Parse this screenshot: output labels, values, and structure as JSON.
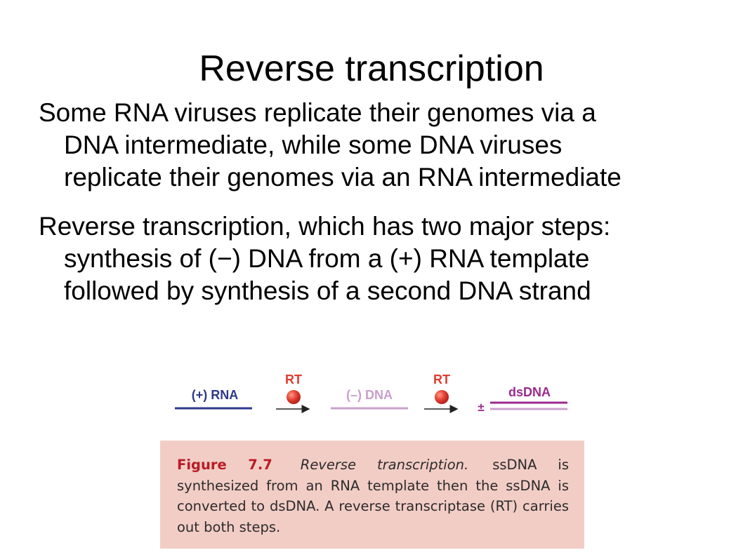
{
  "slide": {
    "title": "Reverse transcription",
    "bullets": [
      {
        "lines": [
          "Some RNA viruses replicate their genomes via a",
          "DNA intermediate, while some DNA viruses",
          "replicate their genomes via an RNA intermediate"
        ]
      },
      {
        "lines": [
          "Reverse transcription, which has two major steps:",
          "synthesis of (−) DNA from a (+) RNA template",
          "followed by synthesis of a second DNA strand"
        ]
      }
    ]
  },
  "figure": {
    "diagram": {
      "rna_label": "(+) RNA",
      "rt_label_1": "RT",
      "dna_label": "(–) DNA",
      "rt_label_2": "RT",
      "plusminus": "±",
      "dsdna_label": "dsDNA",
      "colors": {
        "rna": "#2e3a8c",
        "minus_dna": "#c9a0cc",
        "dsdna": "#9b2a8a",
        "rt": "#e23b2f",
        "arrow": "#222222"
      }
    },
    "caption": {
      "label": "Figure 7.7",
      "title": "Reverse transcription.",
      "text": "ssDNA is synthesized from an RNA template then the ssDNA is converted to dsDNA. A reverse transcriptase (RT) carries out both steps.",
      "background": "#f2cdc6"
    }
  }
}
